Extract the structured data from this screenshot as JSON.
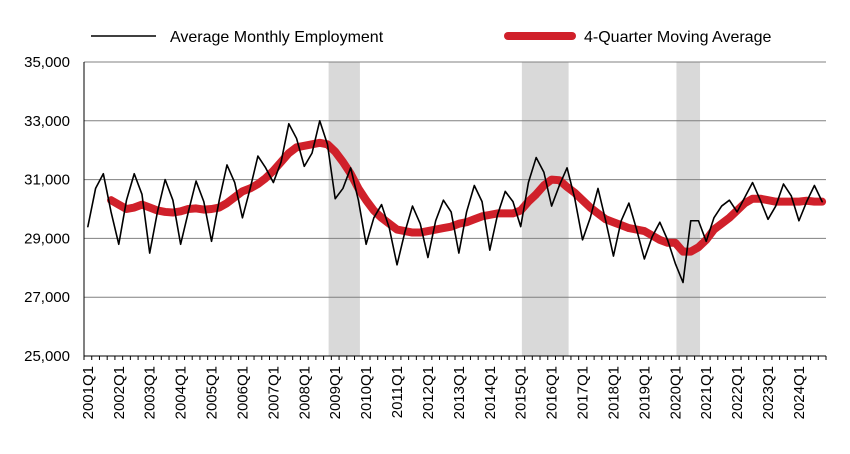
{
  "chart_data": {
    "type": "line",
    "title": "",
    "xlabel": "",
    "ylabel": "",
    "ylim": [
      25000,
      35000
    ],
    "yticks": [
      25000,
      27000,
      29000,
      31000,
      33000,
      35000
    ],
    "ytick_labels": [
      "25,000",
      "27,000",
      "29,000",
      "31,000",
      "33,000",
      "35,000"
    ],
    "grid": "horizontal",
    "legend_position": "top",
    "recession_shading_color": "#d9d9d9",
    "recession_bands": [
      [
        "2008Q4",
        "2009Q4"
      ],
      [
        "2015Q1",
        "2016Q3"
      ],
      [
        "2020Q1",
        "2020Q4"
      ]
    ],
    "x": [
      "2001Q1",
      "2001Q2",
      "2001Q3",
      "2001Q4",
      "2002Q1",
      "2002Q2",
      "2002Q3",
      "2002Q4",
      "2003Q1",
      "2003Q2",
      "2003Q3",
      "2003Q4",
      "2004Q1",
      "2004Q2",
      "2004Q3",
      "2004Q4",
      "2005Q1",
      "2005Q2",
      "2005Q3",
      "2005Q4",
      "2006Q1",
      "2006Q2",
      "2006Q3",
      "2006Q4",
      "2007Q1",
      "2007Q2",
      "2007Q3",
      "2007Q4",
      "2008Q1",
      "2008Q2",
      "2008Q3",
      "2008Q4",
      "2009Q1",
      "2009Q2",
      "2009Q3",
      "2009Q4",
      "2010Q1",
      "2010Q2",
      "2010Q3",
      "2010Q4",
      "2011Q1",
      "2011Q2",
      "2011Q3",
      "2011Q4",
      "2012Q1",
      "2012Q2",
      "2012Q3",
      "2012Q4",
      "2013Q1",
      "2013Q2",
      "2013Q3",
      "2013Q4",
      "2014Q1",
      "2014Q2",
      "2014Q3",
      "2014Q4",
      "2015Q1",
      "2015Q2",
      "2015Q3",
      "2015Q4",
      "2016Q1",
      "2016Q2",
      "2016Q3",
      "2016Q4",
      "2017Q1",
      "2017Q2",
      "2017Q3",
      "2017Q4",
      "2018Q1",
      "2018Q2",
      "2018Q3",
      "2018Q4",
      "2019Q1",
      "2019Q2",
      "2019Q3",
      "2019Q4",
      "2020Q1",
      "2020Q2",
      "2020Q3",
      "2020Q4",
      "2021Q1",
      "2021Q2",
      "2021Q3",
      "2021Q4",
      "2022Q1",
      "2022Q2",
      "2022Q3",
      "2022Q4",
      "2023Q1",
      "2023Q2",
      "2023Q3",
      "2023Q4",
      "2024Q1",
      "2024Q2",
      "2024Q3",
      "2024Q4"
    ],
    "x_tick_labels": [
      "2001Q1",
      "2002Q1",
      "2003Q1",
      "2004Q1",
      "2005Q1",
      "2006Q1",
      "2007Q1",
      "2008Q1",
      "2009Q1",
      "2010Q1",
      "2011Q1",
      "2012Q1",
      "2013Q1",
      "2014Q1",
      "2015Q1",
      "2016Q1",
      "2017Q1",
      "2018Q1",
      "2019Q1",
      "2020Q1",
      "2021Q1",
      "2022Q1",
      "2023Q1",
      "2024Q1"
    ],
    "series": [
      {
        "name": "Average Monthly Employment",
        "color": "#000000",
        "style": "thin-line",
        "values": [
          29400,
          30700,
          31200,
          29900,
          28800,
          30300,
          31200,
          30500,
          28500,
          29900,
          31000,
          30300,
          28800,
          29900,
          30950,
          30250,
          28900,
          30300,
          31500,
          30900,
          29700,
          30700,
          31800,
          31400,
          30900,
          31600,
          32900,
          32400,
          31450,
          31900,
          33000,
          32200,
          30350,
          30700,
          31400,
          30300,
          28800,
          29700,
          30150,
          29350,
          28100,
          29200,
          30100,
          29500,
          28350,
          29600,
          30300,
          29900,
          28500,
          29900,
          30800,
          30250,
          28600,
          29800,
          30600,
          30250,
          29400,
          30900,
          31750,
          31250,
          30100,
          30800,
          31400,
          30350,
          28950,
          29700,
          30700,
          29600,
          28400,
          29600,
          30200,
          29300,
          28300,
          29050,
          29550,
          28950,
          28150,
          27500,
          29600,
          29600,
          28900,
          29700,
          30100,
          30300,
          29900,
          30400,
          30900,
          30300,
          29650,
          30100,
          30850,
          30450,
          29600,
          30250,
          30800,
          30250
        ]
      },
      {
        "name": "4-Quarter Moving Average",
        "color": "#d0202a",
        "style": "thick-line",
        "values": [
          null,
          null,
          null,
          30300,
          30150,
          30000,
          30050,
          30150,
          30050,
          29950,
          29900,
          29880,
          29920,
          30000,
          30020,
          29980,
          30000,
          30050,
          30200,
          30400,
          30600,
          30700,
          30850,
          31050,
          31300,
          31600,
          31900,
          32100,
          32150,
          32200,
          32250,
          32200,
          31950,
          31600,
          31200,
          30700,
          30300,
          29950,
          29700,
          29500,
          29300,
          29250,
          29200,
          29200,
          29250,
          29300,
          29350,
          29400,
          29500,
          29550,
          29650,
          29750,
          29800,
          29850,
          29850,
          29850,
          29950,
          30250,
          30500,
          30800,
          31000,
          30980,
          30750,
          30550,
          30300,
          30050,
          29850,
          29650,
          29550,
          29450,
          29350,
          29300,
          29250,
          29100,
          28950,
          28850,
          28850,
          28550,
          28550,
          28700,
          28950,
          29300,
          29500,
          29700,
          29950,
          30200,
          30350,
          30350,
          30300,
          30250,
          30250,
          30250,
          30250,
          30280,
          30250,
          30250
        ]
      }
    ]
  }
}
